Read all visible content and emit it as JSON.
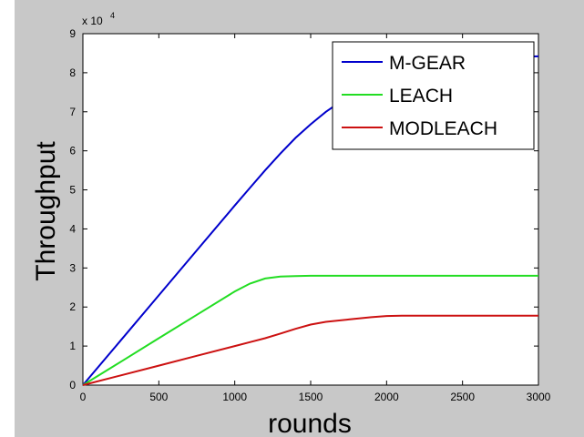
{
  "chart_data": {
    "type": "line",
    "title": "",
    "xlabel": "rounds",
    "ylabel": "Throughput",
    "y_multiplier_label": "x 10",
    "y_multiplier_exponent": "4",
    "xlim": [
      0,
      3000
    ],
    "ylim": [
      0,
      90000
    ],
    "x_ticks": [
      0,
      500,
      1000,
      1500,
      2000,
      2500,
      3000
    ],
    "y_ticks": [
      0,
      10000,
      20000,
      30000,
      40000,
      50000,
      60000,
      70000,
      80000,
      90000
    ],
    "y_tick_labels": [
      "0",
      "1",
      "2",
      "3",
      "4",
      "5",
      "6",
      "7",
      "8",
      "9"
    ],
    "grid": false,
    "legend_position": "top-right",
    "x": [
      0,
      250,
      500,
      750,
      1000,
      1100,
      1200,
      1300,
      1400,
      1500,
      1600,
      1750,
      1900,
      2000,
      2100,
      2250,
      2500,
      2750,
      3000
    ],
    "series": [
      {
        "name": "M-GEAR",
        "color": "#0000cc",
        "values": [
          0,
          11500,
          23000,
          34500,
          46000,
          50500,
          55000,
          59300,
          63300,
          66800,
          70000,
          74000,
          77200,
          79000,
          80500,
          82000,
          83500,
          84000,
          84200
        ]
      },
      {
        "name": "LEACH",
        "color": "#22dd22",
        "values": [
          0,
          6000,
          12000,
          18000,
          24000,
          26000,
          27300,
          27800,
          27900,
          28000,
          28000,
          28000,
          28000,
          28000,
          28000,
          28000,
          28000,
          28000,
          28000
        ]
      },
      {
        "name": "MODLEACH",
        "color": "#cc1111",
        "values": [
          0,
          2500,
          5000,
          7500,
          10000,
          11000,
          12000,
          13200,
          14400,
          15500,
          16200,
          16800,
          17400,
          17700,
          17800,
          17800,
          17800,
          17800,
          17800
        ]
      }
    ]
  }
}
